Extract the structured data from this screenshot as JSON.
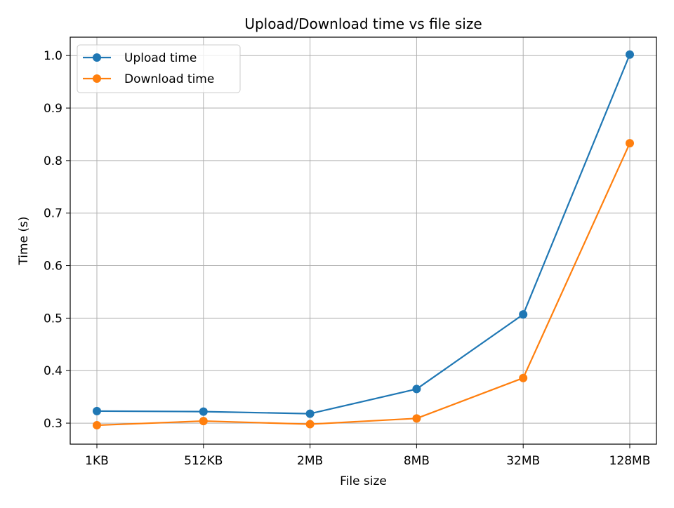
{
  "chart_data": {
    "type": "line",
    "title": "Upload/Download time vs file size",
    "xlabel": "File size",
    "ylabel": "Time (s)",
    "categories": [
      "1KB",
      "512KB",
      "2MB",
      "8MB",
      "32MB",
      "128MB"
    ],
    "series": [
      {
        "name": "Upload time",
        "color": "#1f77b4",
        "values": [
          0.323,
          0.322,
          0.318,
          0.365,
          0.507,
          1.002
        ]
      },
      {
        "name": "Download time",
        "color": "#ff7f0e",
        "values": [
          0.296,
          0.304,
          0.298,
          0.309,
          0.386,
          0.833
        ]
      }
    ],
    "ylim": [
      0.26,
      1.035
    ],
    "yticks": [
      "0.3",
      "0.4",
      "0.5",
      "0.6",
      "0.7",
      "0.8",
      "0.9",
      "1.0"
    ],
    "grid": true,
    "legend_position": "top-left",
    "marker": "circle"
  }
}
